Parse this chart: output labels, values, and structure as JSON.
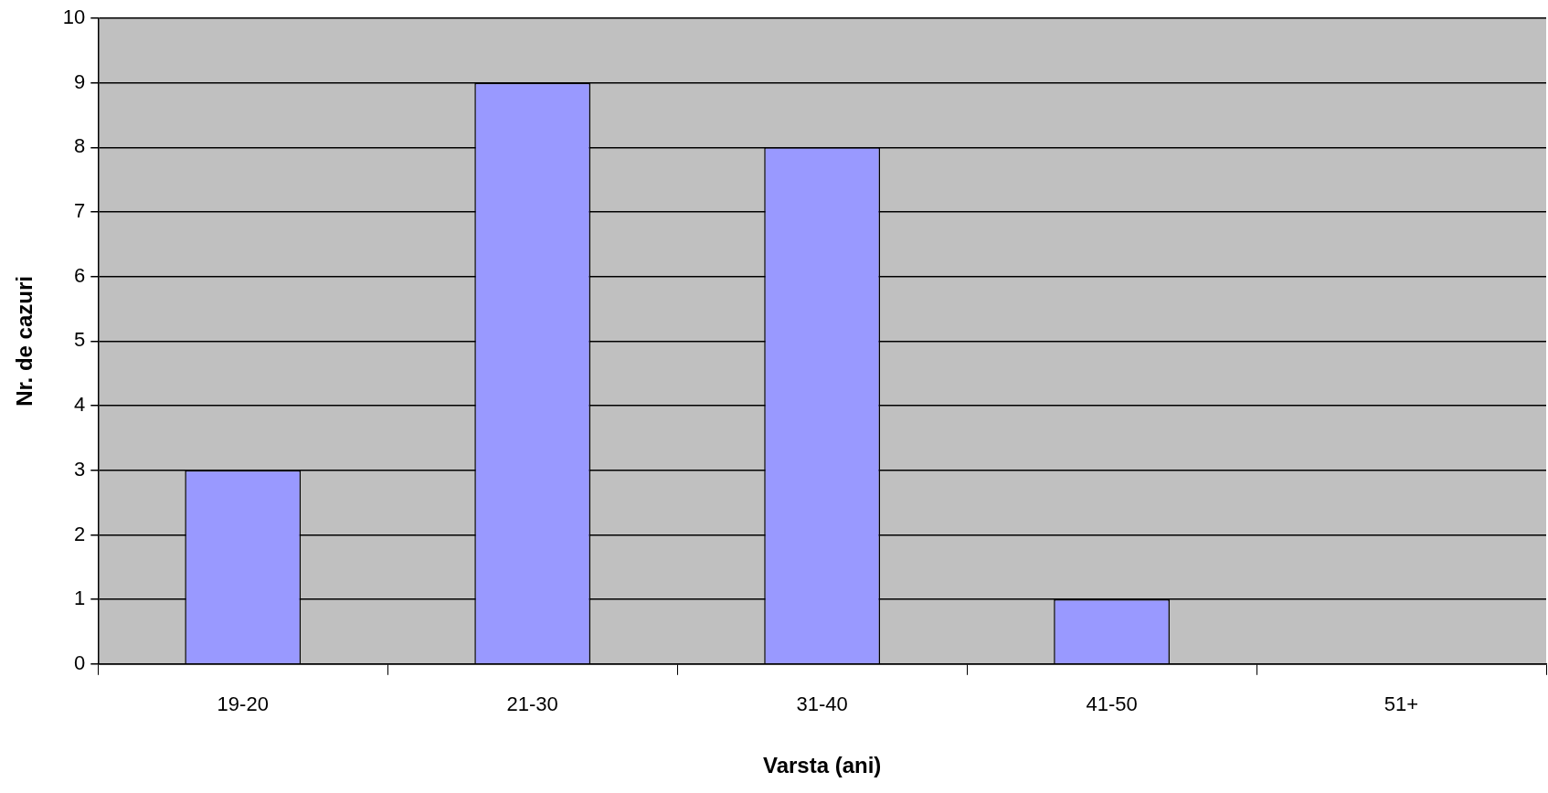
{
  "chart_data": {
    "type": "bar",
    "xlabel": "Varsta (ani)",
    "ylabel": "Nr. de cazuri",
    "categories": [
      "19-20",
      "21-30",
      "31-40",
      "41-50",
      "51+"
    ],
    "values": [
      3,
      9,
      8,
      1,
      0
    ],
    "color": "#9999ff",
    "ylim": [
      0,
      10
    ],
    "yticks": [
      0,
      1,
      2,
      3,
      4,
      5,
      6,
      7,
      8,
      9,
      10
    ],
    "grid": "y"
  }
}
